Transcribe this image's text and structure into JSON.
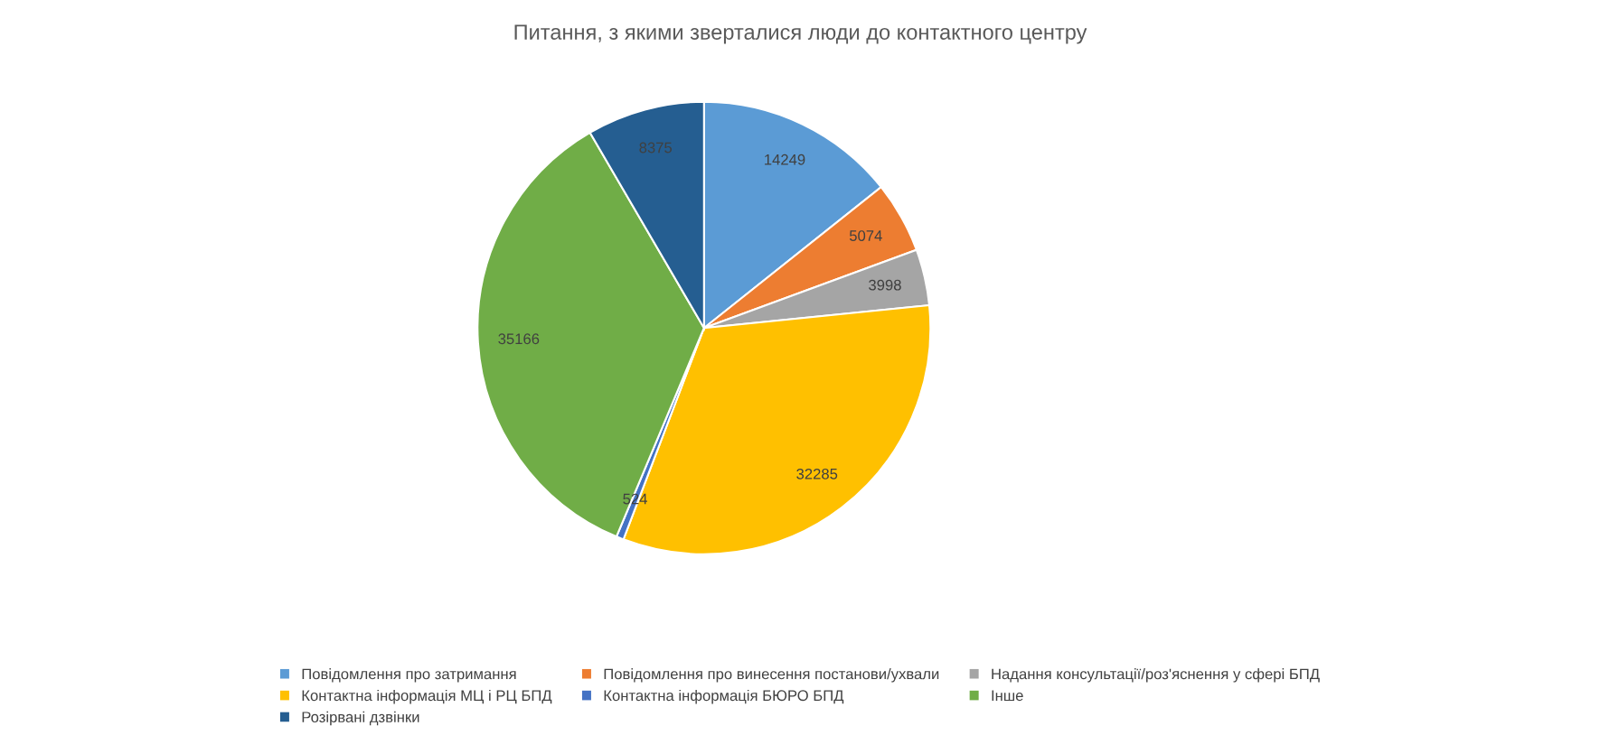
{
  "chart_data": {
    "type": "pie",
    "title": "Питання, з якими зверталися люди до контактного центру",
    "categories": [
      "Повідомлення про затримання",
      "Повідомлення про винесення постанови/ухвали",
      "Надання консультації/роз'яснення у сфері БПД",
      "Контактна інформація МЦ і РЦ БПД",
      "Контактна інформація БЮРО БПД",
      "Інше",
      "Розірвані дзвінки"
    ],
    "values": [
      14249,
      5074,
      3998,
      32285,
      524,
      35166,
      8375
    ],
    "colors": [
      "#5b9bd5",
      "#ed7d31",
      "#a5a5a5",
      "#ffc000",
      "#4472c4",
      "#70ad47",
      "#255e91"
    ],
    "data_labels": true,
    "legend": "bottom"
  }
}
